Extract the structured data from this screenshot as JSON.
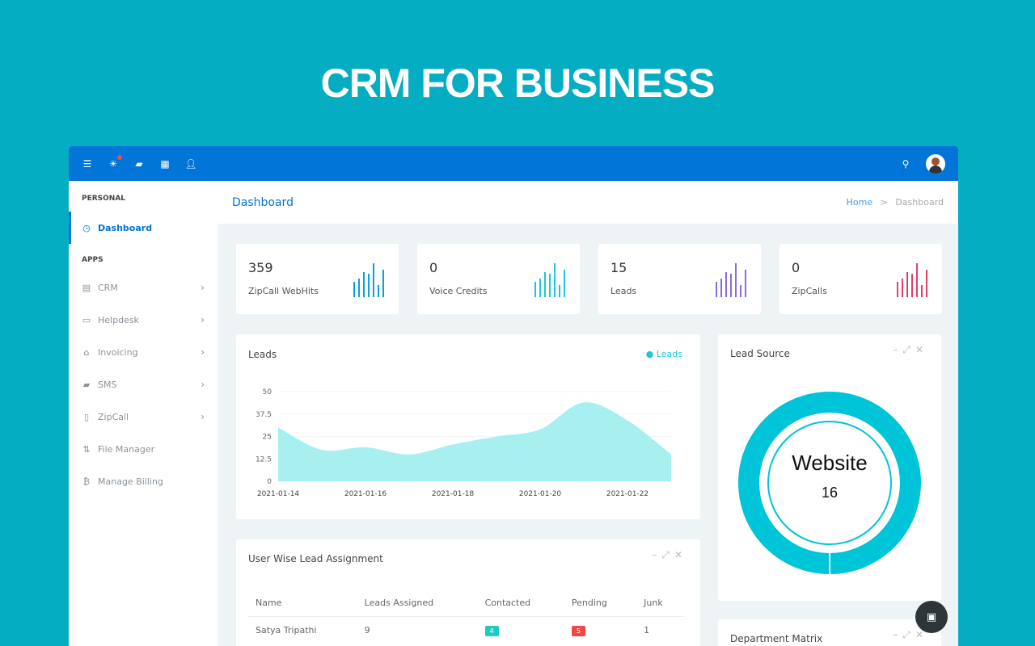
{
  "hero_title": "CRM FOR BUSINESS",
  "topbar": {
    "icons": [
      "menu-icon",
      "sun-icon",
      "chat-icon",
      "grid-icon",
      "user-icon"
    ],
    "search_icon": "search-icon"
  },
  "sidebar": {
    "personal": "PERSONAL",
    "apps": "APPS",
    "dashboard": "Dashboard",
    "items": [
      {
        "label": "CRM",
        "icon": "contact-icon",
        "chevron": true
      },
      {
        "label": "Helpdesk",
        "icon": "monitor-icon",
        "chevron": true
      },
      {
        "label": "Invoicing",
        "icon": "bank-icon",
        "chevron": true
      },
      {
        "label": "SMS",
        "icon": "message-icon",
        "chevron": true
      },
      {
        "label": "ZipCall",
        "icon": "phone-icon",
        "chevron": true
      },
      {
        "label": "File Manager",
        "icon": "file-icon",
        "chevron": false
      },
      {
        "label": "Manage Billing",
        "icon": "bitcoin-icon",
        "chevron": false
      }
    ]
  },
  "header": {
    "title": "Dashboard",
    "breadcrumb_home": "Home",
    "breadcrumb_sep": ">",
    "breadcrumb_current": "Dashboard"
  },
  "stats": [
    {
      "value": "359",
      "label": "ZipCall WebHits",
      "color": "#0aa0d8"
    },
    {
      "value": "0",
      "label": "Voice Credits",
      "color": "#1ec8d8"
    },
    {
      "value": "15",
      "label": "Leads",
      "color": "#8a6be0"
    },
    {
      "value": "0",
      "label": "ZipCalls",
      "color": "#e0406a"
    }
  ],
  "leads_chart": {
    "title": "Leads",
    "legend": "Leads"
  },
  "chart_data": {
    "type": "area",
    "x": [
      "2021-01-14",
      "2021-01-15",
      "2021-01-16",
      "2021-01-17",
      "2021-01-18",
      "2021-01-19",
      "2021-01-20",
      "2021-01-21",
      "2021-01-22",
      "2021-01-23"
    ],
    "series": [
      {
        "name": "Leads",
        "values": [
          30,
          17.5,
          19,
          15,
          20.5,
          25,
          29,
          44,
          34,
          15
        ]
      }
    ],
    "yticks": [
      "0",
      "12.5",
      "25",
      "37.5",
      "50"
    ],
    "xticks": [
      "2021-01-14",
      "2021-01-16",
      "2021-01-18",
      "2021-01-20",
      "2021-01-22"
    ],
    "ylim": [
      0,
      50
    ],
    "color": "#a8f0f0",
    "grid": true,
    "legend": "top-right"
  },
  "lead_source": {
    "title": "Lead Source",
    "label": "Website",
    "value": "16",
    "color": "#00c4d8"
  },
  "assignment": {
    "title": "User Wise Lead Assignment",
    "columns": [
      "Name",
      "Leads Assigned",
      "Contacted",
      "Pending",
      "Junk"
    ],
    "rows": [
      {
        "name": "Satya Tripathi",
        "assigned": "9",
        "contacted": "4",
        "pending": "5",
        "junk": "1"
      }
    ]
  },
  "department": {
    "title": "Department Matrix"
  }
}
